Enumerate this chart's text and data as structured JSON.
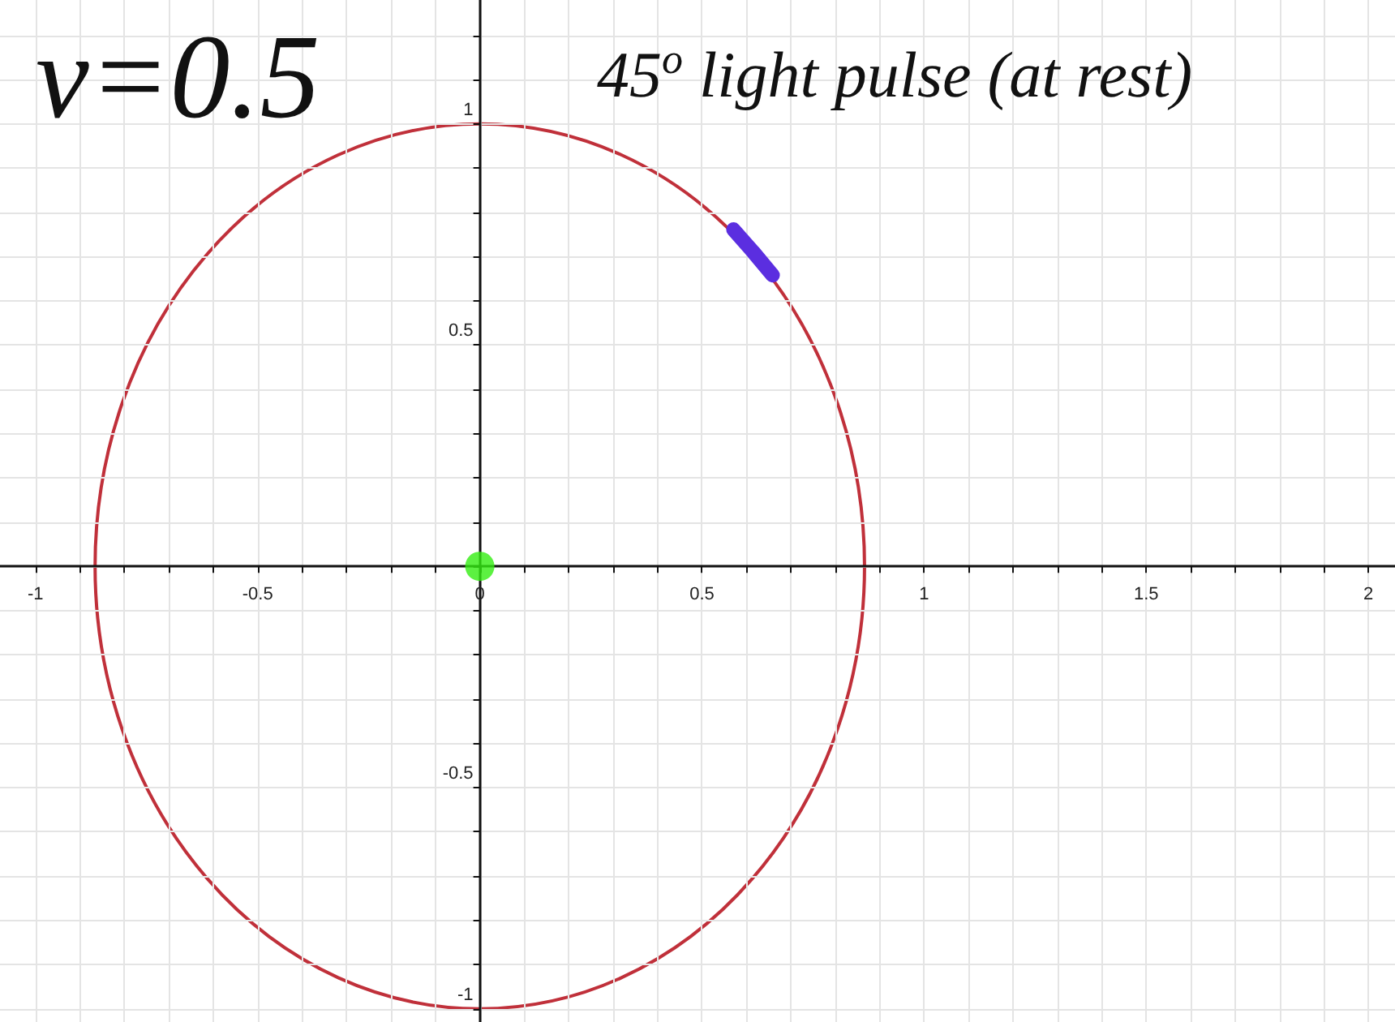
{
  "chart_data": {
    "type": "line",
    "title": "45$^{o}$ light pulse (at rest)",
    "annotations": [
      "v=0.5"
    ],
    "xlim": [
      -1.08,
      2.06
    ],
    "ylim": [
      -1.03,
      1.28
    ],
    "xticks": [
      -1,
      -0.5,
      0,
      0.5,
      1,
      1.5,
      2
    ],
    "yticks": [
      -1,
      -0.5,
      0.5,
      1
    ],
    "grid": true,
    "line_style": "solid",
    "series": [
      {
        "color": "#5b2ee0",
        "x": [
          0.571,
          0.615,
          0.659
        ],
        "values": [
          0.761,
          0.711,
          0.658
        ]
      },
      {
        "type": "scatter",
        "marker": "circle",
        "color": "#33ee11",
        "x": [
          0
        ],
        "values": [
          0
        ]
      }
    ]
  }
}
